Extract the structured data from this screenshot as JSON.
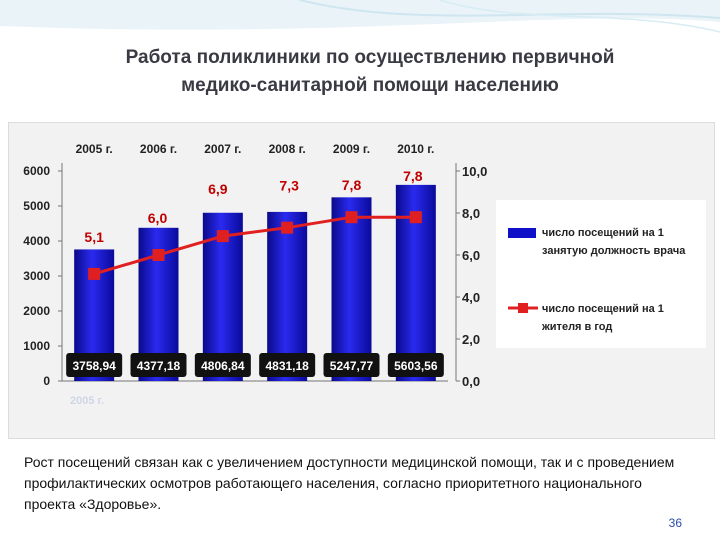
{
  "slide": {
    "title_line1": "Работа поликлиники по осуществлению первичной",
    "title_line2": "медико-санитарной помощи населению",
    "caption": "Рост посещений связан как с увеличением доступности медицинской помощи, так и с проведением профилактических осмотров работающего населения, согласно приоритетного национального проекта «Здоровье».",
    "page_number": "36",
    "watermark": "2005 г."
  },
  "colors": {
    "bar": "#1a1ad6",
    "bar_dark": "#0a0a8a",
    "line": "#e02020",
    "label": "#c00000",
    "value_box": "#111111"
  },
  "chart_data": {
    "type": "bar+line",
    "categories": [
      "2005 г.",
      "2006 г.",
      "2007 г.",
      "2008 г.",
      "2009 г.",
      "2010 г."
    ],
    "series": [
      {
        "name": "число посещений на 1 занятую должность врача",
        "type": "bar",
        "axis": "left",
        "values": [
          3758.94,
          4377.18,
          4806.84,
          4831.18,
          5247.77,
          5603.56
        ],
        "labels": [
          "3758,94",
          "4377,18",
          "4806,84",
          "4831,18",
          "5247,77",
          "5603,56"
        ]
      },
      {
        "name": "число посещений на 1 жителя в год",
        "type": "line",
        "axis": "right",
        "values": [
          5.1,
          6.0,
          6.9,
          7.3,
          7.8,
          7.8
        ],
        "labels": [
          "5,1",
          "6,0",
          "6,9",
          "7,3",
          "7,8",
          "7,8"
        ]
      }
    ],
    "y_left": {
      "min": 0,
      "max": 6000,
      "ticks": [
        "0",
        "1000",
        "2000",
        "3000",
        "4000",
        "5000",
        "6000"
      ],
      "tick_values": [
        0,
        1000,
        2000,
        3000,
        4000,
        5000,
        6000
      ]
    },
    "y_right": {
      "min": 0,
      "max": 10,
      "ticks": [
        "0,0",
        "2,0",
        "4,0",
        "6,0",
        "8,0",
        "10,0"
      ],
      "tick_values": [
        0,
        2,
        4,
        6,
        8,
        10
      ]
    },
    "category_position": "top",
    "legend_position": "right",
    "grid": false
  }
}
